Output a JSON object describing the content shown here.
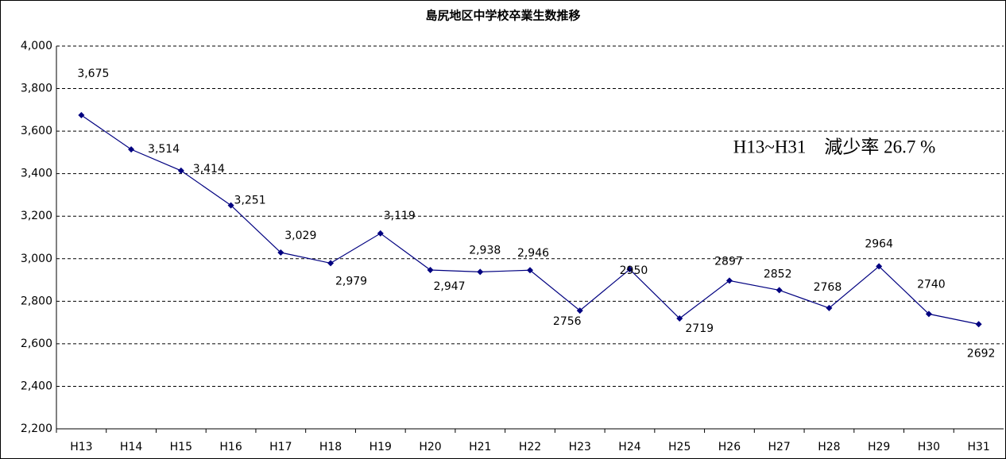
{
  "chart_data": {
    "type": "line",
    "title": "島尻地区中学校卒業生数推移",
    "annotation": "H13~H31　減少率 26.7 %",
    "categories": [
      "H13",
      "H14",
      "H15",
      "H16",
      "H17",
      "H18",
      "H19",
      "H20",
      "H21",
      "H22",
      "H23",
      "H24",
      "H25",
      "H26",
      "H27",
      "H28",
      "H29",
      "H30",
      "H31"
    ],
    "series": [
      {
        "name": "卒業生数",
        "color": "#000080",
        "values": [
          3675,
          3514,
          3414,
          3251,
          3029,
          2979,
          3119,
          2947,
          2938,
          2946,
          2756,
          2950,
          2719,
          2897,
          2852,
          2768,
          2964,
          2740,
          2692
        ],
        "value_labels": [
          "3,675",
          "3,514",
          "3,414",
          "3,251",
          "3,029",
          "2,979",
          "3,119",
          "2,947",
          "2,938",
          "2,946",
          "2756",
          "2950",
          "2719",
          "2897",
          "2852",
          "2768",
          "2964",
          "2740",
          "2692"
        ]
      }
    ],
    "ylim": [
      2200,
      4000
    ],
    "yticks": [
      {
        "value": 2200,
        "label": "2,200"
      },
      {
        "value": 2400,
        "label": "2,400"
      },
      {
        "value": 2600,
        "label": "2,600"
      },
      {
        "value": 2800,
        "label": "2,800"
      },
      {
        "value": 3000,
        "label": "3,000"
      },
      {
        "value": 3200,
        "label": "3,200"
      },
      {
        "value": 3400,
        "label": "3,400"
      },
      {
        "value": 3600,
        "label": "3,600"
      },
      {
        "value": 3800,
        "label": "3,800"
      },
      {
        "value": 4000,
        "label": "4,000"
      }
    ],
    "grid": true
  }
}
